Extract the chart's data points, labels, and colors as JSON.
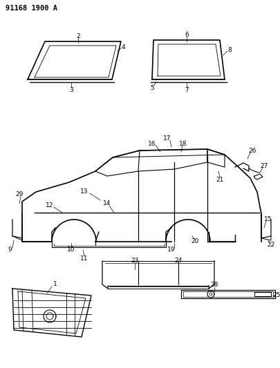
{
  "title": "91168 1900 A",
  "background_color": "#ffffff",
  "line_color": "#000000",
  "figsize": [
    4.06,
    5.33
  ],
  "dpi": 100
}
